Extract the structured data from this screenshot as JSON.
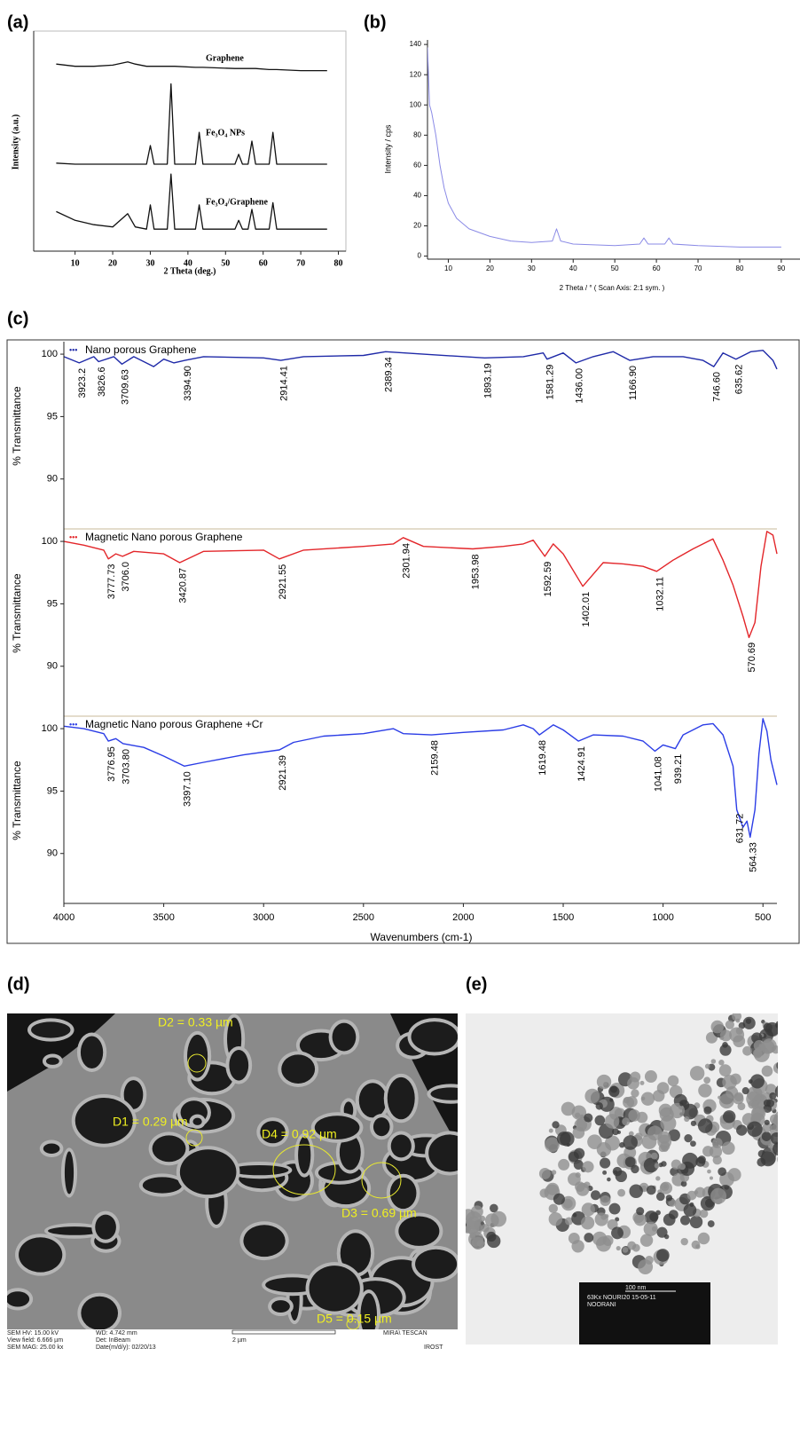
{
  "panel_labels": [
    "(a)",
    "(b)",
    "(c)",
    "(d)",
    "(e)"
  ],
  "chart_data": [
    {
      "type": "line",
      "xlabel": "2 Theta (deg.)",
      "ylabel": "Intensity (a.u.)",
      "x": [
        5,
        10,
        15,
        20,
        24,
        26,
        29,
        30,
        31,
        34.5,
        35.5,
        36.5,
        42,
        43,
        44,
        52.5,
        53.5,
        54.5,
        56,
        57,
        58,
        61.6,
        62.6,
        63.6,
        70,
        77
      ],
      "series": [
        {
          "name": "Graphene",
          "color": "#111111",
          "values": [
            85,
            84,
            84,
            84.5,
            86,
            85,
            84,
            84,
            84,
            84,
            84,
            84,
            83.5,
            83.5,
            83.5,
            83,
            83,
            83,
            83,
            83,
            83,
            82.5,
            82.5,
            82.5,
            82,
            82
          ]
        },
        {
          "name": "Fe₃O₄ NPs",
          "color": "#111111",
          "values": [
            40,
            39.5,
            39.5,
            39.5,
            39.5,
            39.5,
            39.5,
            48,
            39.5,
            39.5,
            76,
            39.5,
            39.5,
            54,
            39.5,
            39.5,
            44,
            39.5,
            39.5,
            50,
            39.5,
            39.5,
            54,
            39.5,
            39.5,
            39.5
          ]
        },
        {
          "name": "Fe₃O₄/Graphene",
          "color": "#111111",
          "values": [
            18,
            14,
            12,
            11,
            17,
            11,
            10,
            21,
            10,
            10,
            35,
            10,
            10,
            21,
            10,
            10,
            14,
            10,
            10,
            19,
            10,
            10,
            22,
            10,
            10,
            10
          ]
        }
      ],
      "xlim": [
        -1,
        82
      ],
      "xticks": [
        10,
        20,
        30,
        40,
        50,
        60,
        70,
        80
      ],
      "ylim": [
        0,
        100
      ]
    },
    {
      "type": "line",
      "xlabel": "2 Theta / °   ( Scan Axis: 2:1 sym. )",
      "ylabel": "Intensity / cps",
      "color": "#8a8ae6",
      "x": [
        5,
        5.5,
        6,
        7,
        8,
        9,
        10,
        12,
        15,
        20,
        25,
        30,
        35,
        36,
        37,
        40,
        50,
        56,
        57,
        58,
        60,
        62,
        63,
        64,
        70,
        80,
        90
      ],
      "values": [
        138,
        100,
        95,
        80,
        60,
        45,
        35,
        25,
        18,
        13,
        10,
        9,
        10,
        18,
        10,
        8,
        7,
        8,
        12,
        8,
        8,
        8,
        12,
        8,
        7,
        6,
        6
      ],
      "xlim": [
        5,
        94.5
      ],
      "xticks": [
        10,
        20,
        30,
        40,
        50,
        60,
        70,
        80,
        90
      ],
      "ylim": [
        -2,
        143
      ],
      "yticks": [
        0,
        20,
        40,
        60,
        80,
        100,
        120,
        140
      ]
    },
    {
      "type": "line",
      "ylabel": "% Transmittance",
      "x": [
        4000,
        3923,
        3850,
        3826,
        3750,
        3709,
        3650,
        3600,
        3550,
        3500,
        3450,
        3394,
        3300,
        3000,
        2914,
        2800,
        2500,
        2389,
        2200,
        1893,
        1700,
        1600,
        1581,
        1500,
        1436,
        1350,
        1250,
        1166,
        1050,
        900,
        800,
        746,
        700,
        635,
        560,
        500,
        450,
        430
      ],
      "series": [
        {
          "name": "Nano porous Graphene",
          "color": "#1f2aa8",
          "values": [
            99.8,
            99.3,
            99.8,
            99.4,
            99.8,
            99.2,
            99.8,
            99.4,
            99.0,
            99.6,
            99.3,
            99.5,
            99.8,
            99.7,
            99.5,
            99.8,
            99.9,
            100.2,
            100.0,
            99.7,
            99.8,
            100.1,
            99.6,
            100.1,
            99.3,
            99.8,
            100.2,
            99.5,
            99.8,
            99.8,
            99.5,
            99.0,
            100.1,
            99.6,
            100.2,
            100.3,
            99.5,
            98.8
          ]
        }
      ],
      "peaks": [
        3923.2,
        3826.6,
        3709.63,
        {
          "value": 3394.9,
          "label": "3394.90"
        },
        2914.41,
        2389.34,
        1893.19,
        1581.29,
        {
          "value": 1436,
          "label": "1436.00"
        },
        {
          "value": 1166.9,
          "label": "1166.90"
        },
        {
          "value": 746.6,
          "label": "746.60"
        },
        635.62
      ],
      "xlim": [
        4000,
        430
      ],
      "ylim": [
        86,
        101
      ],
      "yticks": [
        90,
        95,
        100
      ]
    },
    {
      "type": "line",
      "ylabel": "% Transmittance",
      "x": [
        4000,
        3900,
        3800,
        3777,
        3740,
        3706,
        3650,
        3500,
        3420,
        3300,
        3000,
        2921,
        2800,
        2500,
        2350,
        2301,
        2200,
        1953,
        1800,
        1700,
        1650,
        1592,
        1550,
        1500,
        1402,
        1300,
        1200,
        1100,
        1032,
        950,
        850,
        750,
        700,
        650,
        600,
        570,
        540,
        510,
        480,
        450,
        430
      ],
      "series": [
        {
          "name": "Magnetic Nano porous Graphene",
          "color": "#e3262a",
          "values": [
            100,
            99.7,
            99.3,
            98.6,
            99.0,
            98.8,
            99.2,
            99.0,
            98.3,
            99.2,
            99.3,
            98.6,
            99.3,
            99.6,
            99.8,
            100.3,
            99.6,
            99.4,
            99.6,
            99.8,
            100.1,
            98.8,
            99.8,
            99.0,
            96.4,
            98.3,
            98.2,
            98.0,
            97.6,
            98.5,
            99.4,
            100.2,
            98.5,
            96.5,
            94.0,
            92.3,
            93.5,
            98,
            100.8,
            100.5,
            99
          ]
        }
      ],
      "peaks": [
        3777.73,
        {
          "value": 3706,
          "label": "3706.0"
        },
        3420.87,
        2921.55,
        2301.94,
        1953.98,
        1592.59,
        1402.01,
        1032.11,
        570.69
      ],
      "xlim": [
        4000,
        430
      ],
      "ylim": [
        86,
        101
      ],
      "yticks": [
        90,
        95,
        100
      ]
    },
    {
      "type": "line",
      "ylabel": "% Transmittance",
      "xlabel": "Wavenumbers (cm-1)",
      "x": [
        4000,
        3900,
        3800,
        3777,
        3740,
        3704,
        3600,
        3500,
        3397,
        3300,
        3100,
        2921,
        2850,
        2700,
        2500,
        2350,
        2300,
        2159,
        2000,
        1800,
        1700,
        1650,
        1619,
        1550,
        1500,
        1424,
        1350,
        1200,
        1100,
        1041,
        1000,
        939,
        900,
        800,
        750,
        700,
        650,
        631,
        600,
        580,
        564,
        540,
        520,
        500,
        480,
        460,
        430
      ],
      "series": [
        {
          "name": "Magnetic Nano porous Graphene +Cr",
          "color": "#2b3de6",
          "values": [
            100.2,
            100.0,
            99.6,
            99.0,
            99.2,
            98.8,
            98.5,
            97.8,
            97.0,
            97.3,
            97.9,
            98.3,
            98.9,
            99.4,
            99.6,
            100.0,
            99.6,
            99.5,
            99.7,
            99.9,
            100.3,
            100.0,
            99.5,
            100.3,
            99.9,
            99.0,
            99.5,
            99.4,
            99.0,
            98.2,
            98.7,
            98.4,
            99.5,
            100.3,
            100.4,
            99.5,
            97.0,
            93.5,
            92.1,
            92.6,
            91.3,
            93.5,
            98.0,
            100.8,
            99.8,
            97.5,
            95.5
          ]
        }
      ],
      "peaks": [
        3776.95,
        {
          "value": 3703.8,
          "label": "3703.80"
        },
        {
          "value": 3397.1,
          "label": "3397.10"
        },
        2921.39,
        2159.48,
        1619.48,
        1424.91,
        1041.08,
        939.21,
        631.72,
        564.33
      ],
      "xlim": [
        4000,
        430
      ],
      "xticks": [
        4000,
        3500,
        3000,
        2500,
        2000,
        1500,
        1000,
        500
      ],
      "ylim": [
        86,
        101
      ],
      "yticks": [
        90,
        95,
        100
      ]
    }
  ],
  "sem": {
    "labels": [
      "D2 = 0.33 µm",
      "D1 = 0.29 µm",
      "D4 = 0.92 µm",
      "D3 = 0.69 µm",
      "D5 = 0.15 µm"
    ],
    "info": [
      "SEM HV: 15.00 kV",
      "WD: 4.742 mm",
      "MIRA\\ TESCAN",
      "View field: 6.666 µm",
      "Det: InBeam",
      "2 µm",
      "SEM MAG: 25.00 kx",
      "Date(m/d/y): 02/20/13",
      "IROST"
    ]
  },
  "tem": {
    "scale": [
      "100 nm",
      "63Kx  NOURI20 15-05-11",
      "NOORANI"
    ]
  }
}
